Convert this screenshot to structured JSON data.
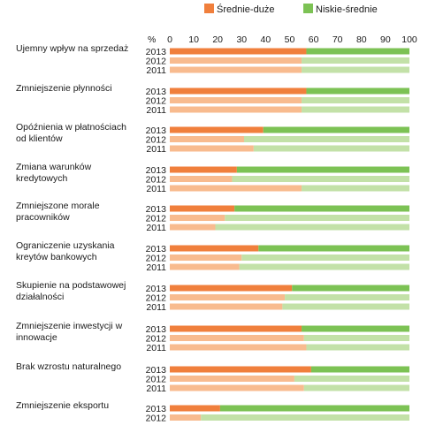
{
  "chart_data": {
    "type": "bar",
    "orientation": "horizontal",
    "stacked": true,
    "percent_axis_label": "%",
    "xlim": [
      0,
      100
    ],
    "ticks": [
      0,
      10,
      20,
      30,
      40,
      50,
      60,
      70,
      80,
      90,
      100
    ],
    "legend": {
      "placement": "top-right",
      "entries": [
        {
          "key": "sd",
          "label": "Średnie-duże",
          "color": "#f07f3c"
        },
        {
          "key": "ns",
          "label": "Niskie-średnie",
          "color": "#7cc254"
        }
      ]
    },
    "colors": {
      "sd": "#f07f3c",
      "ns": "#7cc254",
      "sd_light": "#f8bb8f",
      "ns_light": "#c3e1a8"
    },
    "categories": [
      {
        "label": [
          "Ujemny wpływ na sprzedaż"
        ],
        "rows": [
          {
            "year": "2013",
            "value": 57
          },
          {
            "year": "2012",
            "value": 55
          },
          {
            "year": "2011",
            "value": 55
          }
        ]
      },
      {
        "label": [
          "Zmniejszenie płynności"
        ],
        "rows": [
          {
            "year": "2013",
            "value": 57
          },
          {
            "year": "2012",
            "value": 55
          },
          {
            "year": "2011",
            "value": 55
          }
        ]
      },
      {
        "label": [
          "Opóźnienia w płatnościach",
          "od klientów"
        ],
        "rows": [
          {
            "year": "2013",
            "value": 39
          },
          {
            "year": "2012",
            "value": 31
          },
          {
            "year": "2011",
            "value": 35
          }
        ]
      },
      {
        "label": [
          "Zmiana warunków",
          "kredytowych"
        ],
        "rows": [
          {
            "year": "2013",
            "value": 28
          },
          {
            "year": "2012",
            "value": 26
          },
          {
            "year": "2011",
            "value": 55
          }
        ]
      },
      {
        "label": [
          "Zmniejszone morale",
          "pracowników"
        ],
        "rows": [
          {
            "year": "2013",
            "value": 27
          },
          {
            "year": "2012",
            "value": 23
          },
          {
            "year": "2011",
            "value": 19
          }
        ]
      },
      {
        "label": [
          "Ograniczenie uzyskania",
          "kreytów bankowych"
        ],
        "rows": [
          {
            "year": "2013",
            "value": 37
          },
          {
            "year": "2012",
            "value": 30
          },
          {
            "year": "2011",
            "value": 29
          }
        ]
      },
      {
        "label": [
          "Skupienie na podstawowej",
          "działalności"
        ],
        "rows": [
          {
            "year": "2013",
            "value": 51
          },
          {
            "year": "2012",
            "value": 48
          },
          {
            "year": "2011",
            "value": 47
          }
        ]
      },
      {
        "label": [
          "Zmniejszenie inwestycji w",
          "innowacje"
        ],
        "rows": [
          {
            "year": "2013",
            "value": 55
          },
          {
            "year": "2012",
            "value": 56
          },
          {
            "year": "2011",
            "value": 57
          }
        ]
      },
      {
        "label": [
          "Brak wzrostu naturalnego"
        ],
        "rows": [
          {
            "year": "2013",
            "value": 59
          },
          {
            "year": "2012",
            "value": 52
          },
          {
            "year": "2011",
            "value": 56
          }
        ]
      },
      {
        "label": [
          "Zmniejszenie eksportu"
        ],
        "rows": [
          {
            "year": "2013",
            "value": 21
          },
          {
            "year": "2012",
            "value": 13
          }
        ]
      }
    ]
  }
}
